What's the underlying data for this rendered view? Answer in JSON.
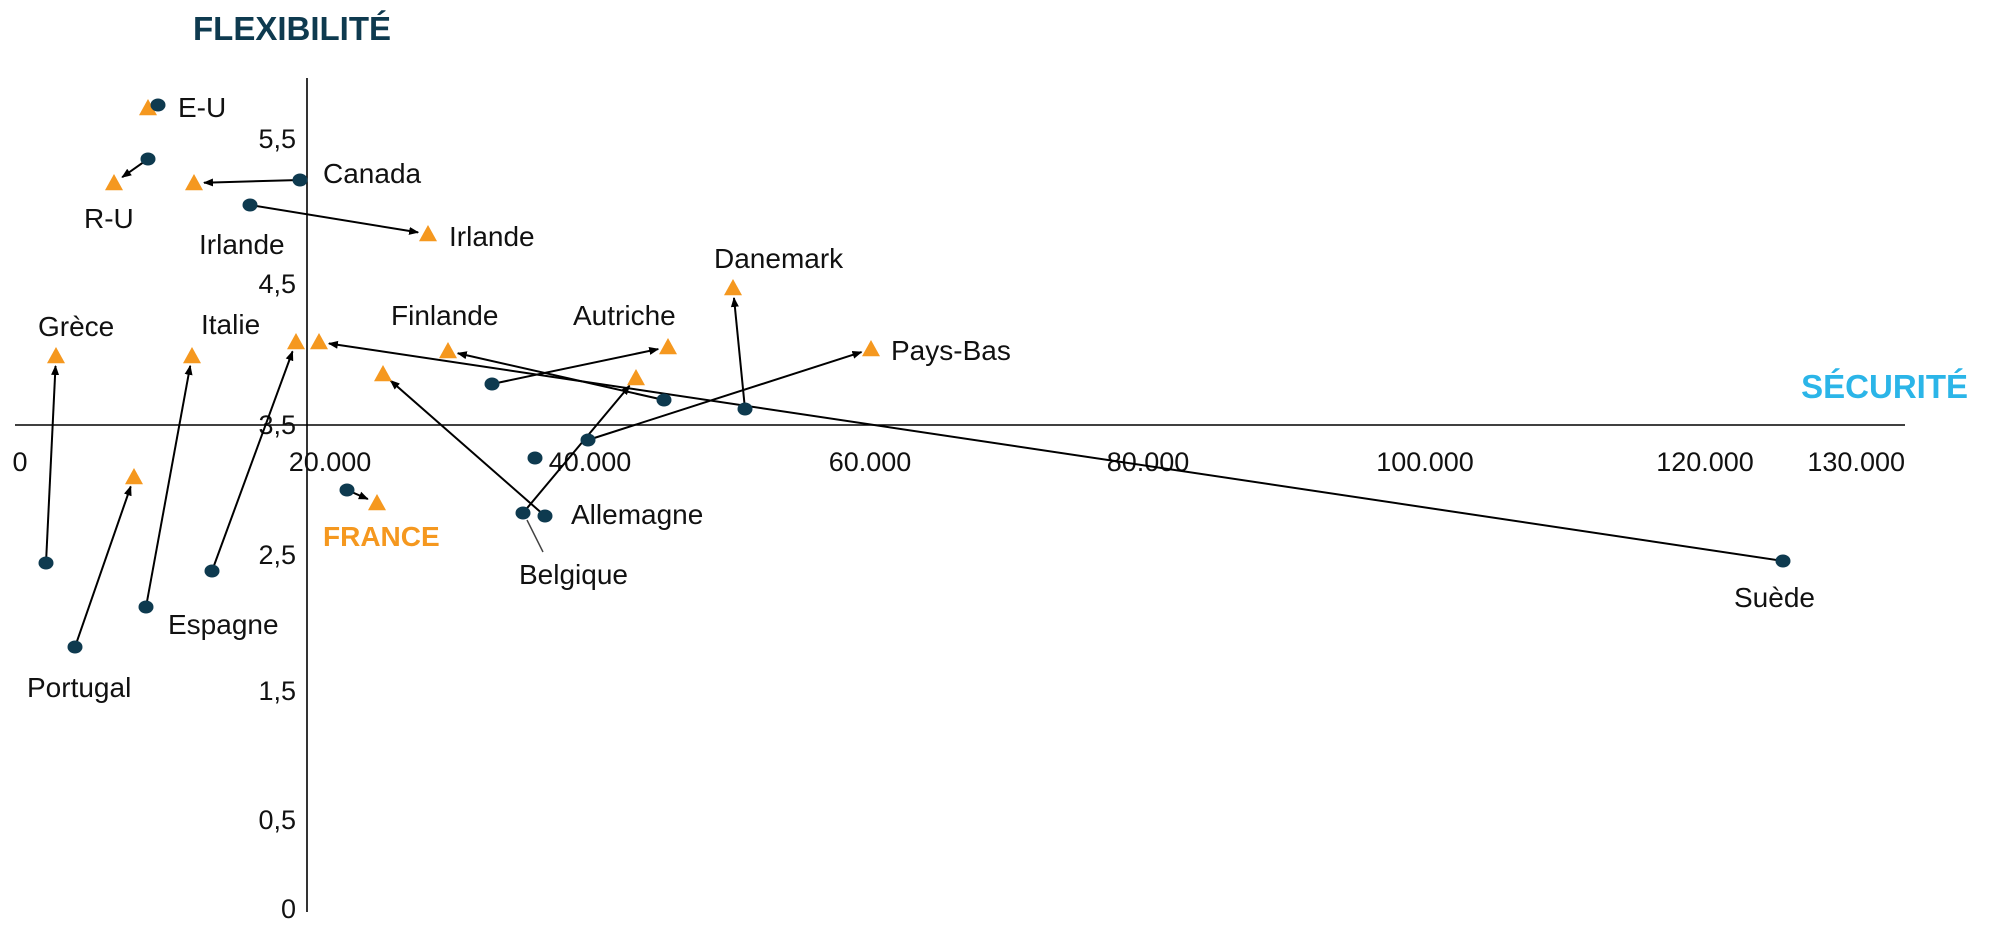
{
  "chart_data": {
    "type": "scatter",
    "title": "",
    "xlabel": "SÉCURITÉ",
    "ylabel": "FLEXIBILITÉ",
    "x_ticks": [
      {
        "value": 0,
        "label": "0"
      },
      {
        "value": 20000,
        "label": "20.000"
      },
      {
        "value": 40000,
        "label": "40.000"
      },
      {
        "value": 60000,
        "label": "60.000"
      },
      {
        "value": 80000,
        "label": "80.000"
      },
      {
        "value": 100000,
        "label": "100.000"
      },
      {
        "value": 120000,
        "label": "120.000"
      },
      {
        "value": 130000,
        "label": "130.000"
      }
    ],
    "y_ticks": [
      {
        "value": 0,
        "label": "0"
      },
      {
        "value": 0.5,
        "label": "0,5"
      },
      {
        "value": 1.5,
        "label": "1,5"
      },
      {
        "value": 2.5,
        "label": "2,5"
      },
      {
        "value": 3.5,
        "label": "3,5"
      },
      {
        "value": 4.5,
        "label": "4,5"
      },
      {
        "value": 5.5,
        "label": "5,5"
      }
    ],
    "colors": {
      "start_marker": "#0e3a4f",
      "end_marker": "#f5981f",
      "arrow": "#000000",
      "y_title": "#0e3a4f",
      "x_title": "#2bb5e8",
      "highlight": "#f5981f"
    },
    "markers": {
      "start": "circle",
      "end": "triangle"
    },
    "countries": [
      {
        "name": "E-U",
        "from": [
          10000,
          5.75
        ],
        "to": [
          9000,
          5.73
        ],
        "arrow": false
      },
      {
        "name": "R-U",
        "from": [
          9500,
          5.35
        ],
        "to": [
          7000,
          5.15
        ],
        "arrow": true
      },
      {
        "name": "Canada",
        "from": [
          20000,
          5.2
        ],
        "to": [
          12500,
          5.18
        ],
        "arrow": true
      },
      {
        "name": "Irlande",
        "from": [
          16500,
          5.0
        ],
        "to": [
          29000,
          4.75
        ],
        "arrow": true
      },
      {
        "name": "Grèce",
        "from": [
          2000,
          2.55
        ],
        "to": [
          2800,
          4.1
        ],
        "arrow": true
      },
      {
        "name": "Portugal",
        "from": [
          4000,
          1.9
        ],
        "to": [
          8500,
          3.05
        ],
        "arrow": true
      },
      {
        "name": "Italie",
        "from": [
          9000,
          2.2
        ],
        "to": [
          12500,
          4.1
        ],
        "arrow": true
      },
      {
        "name": "Espagne",
        "from": [
          14000,
          2.5
        ],
        "to": [
          19500,
          4.2
        ],
        "arrow": true
      },
      {
        "name": "FRANCE",
        "from": [
          23000,
          2.98
        ],
        "to": [
          25000,
          2.9
        ],
        "arrow": true,
        "highlight": true
      },
      {
        "name": "Finlande",
        "from": [
          41000,
          3.55
        ],
        "to": [
          33000,
          4.05
        ],
        "arrow": true
      },
      {
        "name": "Autriche",
        "from": [
          42000,
          3.65
        ],
        "to": [
          46500,
          4.08
        ],
        "arrow": true
      },
      {
        "name": "Danemark",
        "from": [
          51500,
          3.6
        ],
        "to": [
          51000,
          4.55
        ],
        "arrow": true
      },
      {
        "name": "Pays-Bas",
        "from": [
          38000,
          3.4
        ],
        "to": [
          61000,
          4.08
        ],
        "arrow": true
      },
      {
        "name": "Belgique",
        "from": [
          36000,
          2.85
        ],
        "to": [
          44500,
          3.75
        ],
        "arrow": true
      },
      {
        "name": "Allemagne",
        "from": [
          37000,
          2.8
        ],
        "to": [
          26000,
          3.85
        ],
        "arrow": true
      },
      {
        "name": "Suède",
        "from": [
          125000,
          2.6
        ],
        "to": [
          20000,
          4.15
        ],
        "arrow": true
      }
    ],
    "extra_points": [
      {
        "shape": "circle",
        "at": [
          36500,
          3.32
        ]
      }
    ]
  }
}
